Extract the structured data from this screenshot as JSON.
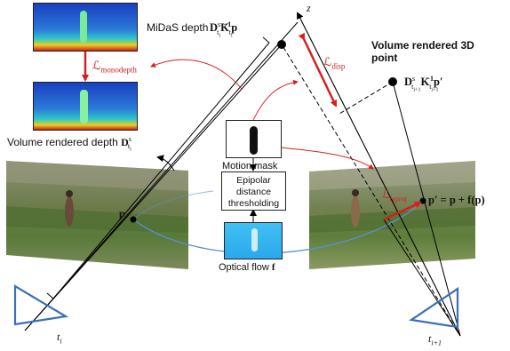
{
  "labels": {
    "midas_depth": "MiDaS depth",
    "volume_rendered_depth": "Volume rendered depth",
    "volume_rendered_point_line1": "Volume rendered 3D",
    "volume_rendered_point_line2": "point",
    "motion_mask": "Motion mask",
    "epipolar_line1": "Epipolar",
    "epipolar_line2": "distance",
    "epipolar_line3": "thresholding",
    "optical_flow": "Optical flow"
  },
  "math": {
    "L": "ℒ",
    "monodepth_sub": "monodepth",
    "disp_sub": "disp",
    "reproj_sub": "reproj",
    "D": "D",
    "K": "K",
    "s": "s",
    "ti": "t",
    "i": "i",
    "ip1": "i+1",
    "inv": "−1",
    "p": "p",
    "p_prime": "p′",
    "eq": "p′ = p + f(p)",
    "f": "f",
    "z": "z"
  },
  "colors": {
    "loss": "#d42020",
    "camera": "#3a6fb5",
    "epipolar_curve": "#5b8fd0",
    "ray": "#000000",
    "flow_bg": "#35b4f0",
    "depth_far": "#1a3fc0",
    "depth_near": "#d0201c"
  },
  "icons": {
    "camera_left": "camera-frustum-icon",
    "camera_right": "camera-frustum-icon",
    "person_silhouette": "person-silhouette-icon"
  }
}
